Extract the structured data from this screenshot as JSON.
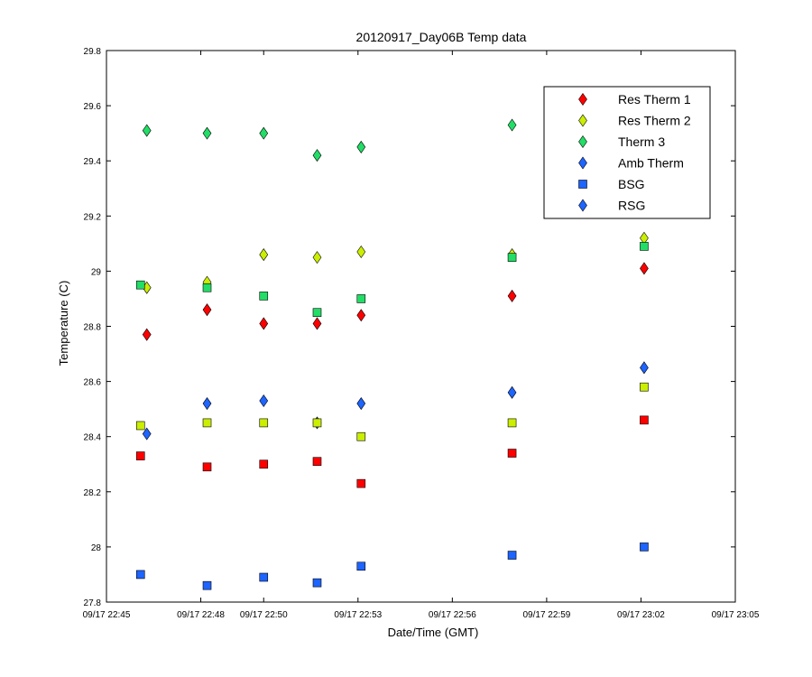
{
  "chart_data": {
    "type": "scatter",
    "title": "20120917_Day06B Temp data",
    "xlabel": "Date/Time (GMT)",
    "ylabel": "Temperature (C)",
    "xlim": [
      "09/17 22:45",
      "09/17 23:05"
    ],
    "ylim": [
      27.8,
      29.8
    ],
    "x_ticks": [
      {
        "value": "09/17 22:45",
        "label": "09/17 22:45"
      },
      {
        "value": "09/17 22:48",
        "label": "09/17 22:48"
      },
      {
        "value": "09/17 22:50",
        "label": "09/17 22:50"
      },
      {
        "value": "09/17 22:53",
        "label": "09/17 22:53"
      },
      {
        "value": "09/17 22:56",
        "label": "09/17 22:56"
      },
      {
        "value": "09/17 22:59",
        "label": "09/17 22:59"
      },
      {
        "value": "09/17 23:02",
        "label": "09/17 23:02"
      },
      {
        "value": "09/17 23:05",
        "label": "09/17 23:05"
      }
    ],
    "y_ticks": [
      {
        "value": 27.8,
        "label": "27.8"
      },
      {
        "value": 28.0,
        "label": "28"
      },
      {
        "value": 28.2,
        "label": "28.2"
      },
      {
        "value": 28.4,
        "label": "28.4"
      },
      {
        "value": 28.6,
        "label": "28.6"
      },
      {
        "value": 28.8,
        "label": "28.8"
      },
      {
        "value": 29.0,
        "label": "29"
      },
      {
        "value": 29.2,
        "label": "29.2"
      },
      {
        "value": 29.4,
        "label": "29.4"
      },
      {
        "value": 29.6,
        "label": "29.6"
      },
      {
        "value": 29.8,
        "label": "29.8"
      }
    ],
    "grid": false,
    "legend": {
      "position": "top-right"
    },
    "series": [
      {
        "name": "Res Therm 1",
        "marker": "diamond",
        "color": "#ff0000",
        "x": [
          "09/17 22:46:17",
          "09/17 22:48:12",
          "09/17 22:50:00",
          "09/17 22:51:42",
          "09/17 22:53:06",
          "09/17 22:57:54",
          "09/17 23:02:06"
        ],
        "y": [
          28.77,
          28.86,
          28.81,
          28.81,
          28.84,
          28.91,
          29.01
        ]
      },
      {
        "name": "Res Therm 2",
        "marker": "diamond",
        "color": "#ccee00",
        "x": [
          "09/17 22:46:17",
          "09/17 22:48:12",
          "09/17 22:50:00",
          "09/17 22:51:42",
          "09/17 22:53:06",
          "09/17 22:57:54",
          "09/17 23:02:06"
        ],
        "y": [
          28.94,
          28.96,
          29.06,
          29.05,
          29.07,
          29.06,
          29.12
        ]
      },
      {
        "name": "Therm 3",
        "marker": "diamond",
        "color": "#22dd66",
        "x": [
          "09/17 22:46:17",
          "09/17 22:48:12",
          "09/17 22:50:00",
          "09/17 22:51:42",
          "09/17 22:53:06",
          "09/17 22:57:54"
        ],
        "y": [
          29.51,
          29.5,
          29.5,
          29.42,
          29.45,
          29.53
        ]
      },
      {
        "name": "Amb Therm",
        "marker": "diamond",
        "color": "#1e64ff",
        "x": [
          "09/17 22:46:17",
          "09/17 22:48:12",
          "09/17 22:50:00",
          "09/17 22:51:42",
          "09/17 22:53:06",
          "09/17 22:57:54",
          "09/17 23:02:06"
        ],
        "y": [
          28.41,
          28.52,
          28.53,
          28.45,
          28.52,
          28.56,
          28.65
        ]
      },
      {
        "name": "BSG",
        "marker": "square",
        "color": "#1e64ff",
        "x": [
          "09/17 22:46:05",
          "09/17 22:48:12",
          "09/17 22:50:00",
          "09/17 22:51:42",
          "09/17 22:53:06",
          "09/17 22:57:54",
          "09/17 23:02:06"
        ],
        "y": [
          27.9,
          27.86,
          27.89,
          27.87,
          27.93,
          27.97,
          28.0
        ]
      },
      {
        "name": "RSG",
        "marker": "diamond",
        "color": "#1e64ff",
        "x": [],
        "y": []
      },
      {
        "marker": "square",
        "color": "#ff0000",
        "x": [
          "09/17 22:46:05",
          "09/17 22:48:12",
          "09/17 22:50:00",
          "09/17 22:51:42",
          "09/17 22:53:06",
          "09/17 22:57:54",
          "09/17 23:02:06"
        ],
        "y": [
          28.33,
          28.29,
          28.3,
          28.31,
          28.23,
          28.34,
          28.46
        ]
      },
      {
        "marker": "square",
        "color": "#ccee00",
        "x": [
          "09/17 22:46:05",
          "09/17 22:48:12",
          "09/17 22:50:00",
          "09/17 22:51:42",
          "09/17 22:53:06",
          "09/17 22:57:54",
          "09/17 23:02:06"
        ],
        "y": [
          28.44,
          28.45,
          28.45,
          28.45,
          28.4,
          28.45,
          28.58
        ]
      },
      {
        "marker": "square",
        "color": "#22dd66",
        "x": [
          "09/17 22:46:05",
          "09/17 22:48:12",
          "09/17 22:50:00",
          "09/17 22:51:42",
          "09/17 22:53:06",
          "09/17 22:57:54",
          "09/17 23:02:06"
        ],
        "y": [
          28.95,
          28.94,
          28.91,
          28.85,
          28.9,
          29.05,
          29.09
        ]
      }
    ]
  }
}
